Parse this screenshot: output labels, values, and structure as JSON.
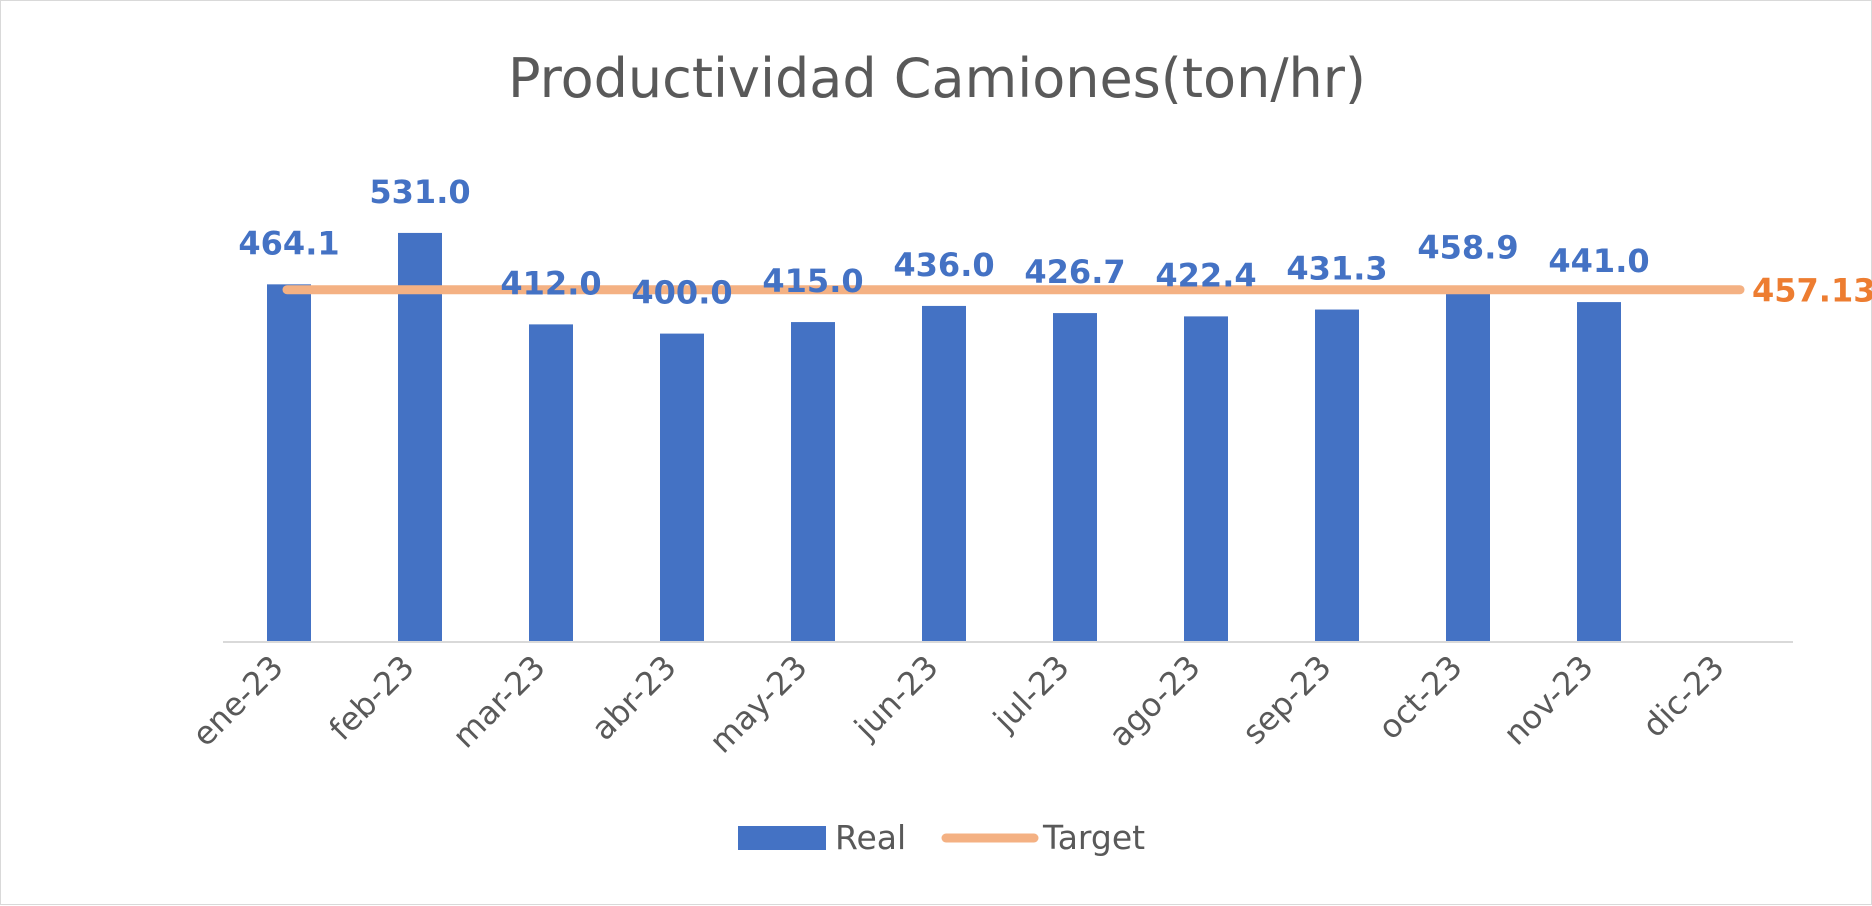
{
  "chart_data": {
    "type": "bar",
    "title": "Productividad Camiones(ton/hr)",
    "categories": [
      "ene-23",
      "feb-23",
      "mar-23",
      "abr-23",
      "may-23",
      "jun-23",
      "jul-23",
      "ago-23",
      "sep-23",
      "oct-23",
      "nov-23",
      "dic-23"
    ],
    "series": [
      {
        "name": "Real",
        "type": "bar",
        "color": "#4472c4",
        "values": [
          464.1,
          531.0,
          412.0,
          400.0,
          415.0,
          436.0,
          426.7,
          422.4,
          431.3,
          458.9,
          441.0,
          null
        ],
        "labels": [
          "464.1",
          "531.0",
          "412.0",
          "400.0",
          "415.0",
          "436.0",
          "426.7",
          "422.4",
          "431.3",
          "458.9",
          "441.0",
          ""
        ]
      },
      {
        "name": "Target",
        "type": "line",
        "color": "#f4b183",
        "values": [
          457.13,
          457.13,
          457.13,
          457.13,
          457.13,
          457.13,
          457.13,
          457.13,
          457.13,
          457.13,
          457.13,
          457.13
        ],
        "end_label": "457.13",
        "end_label_color": "#ed7d31"
      }
    ],
    "ylim": [
      0,
      600
    ],
    "xlabel": "",
    "ylabel": "",
    "grid": false,
    "legend_position": "bottom"
  }
}
